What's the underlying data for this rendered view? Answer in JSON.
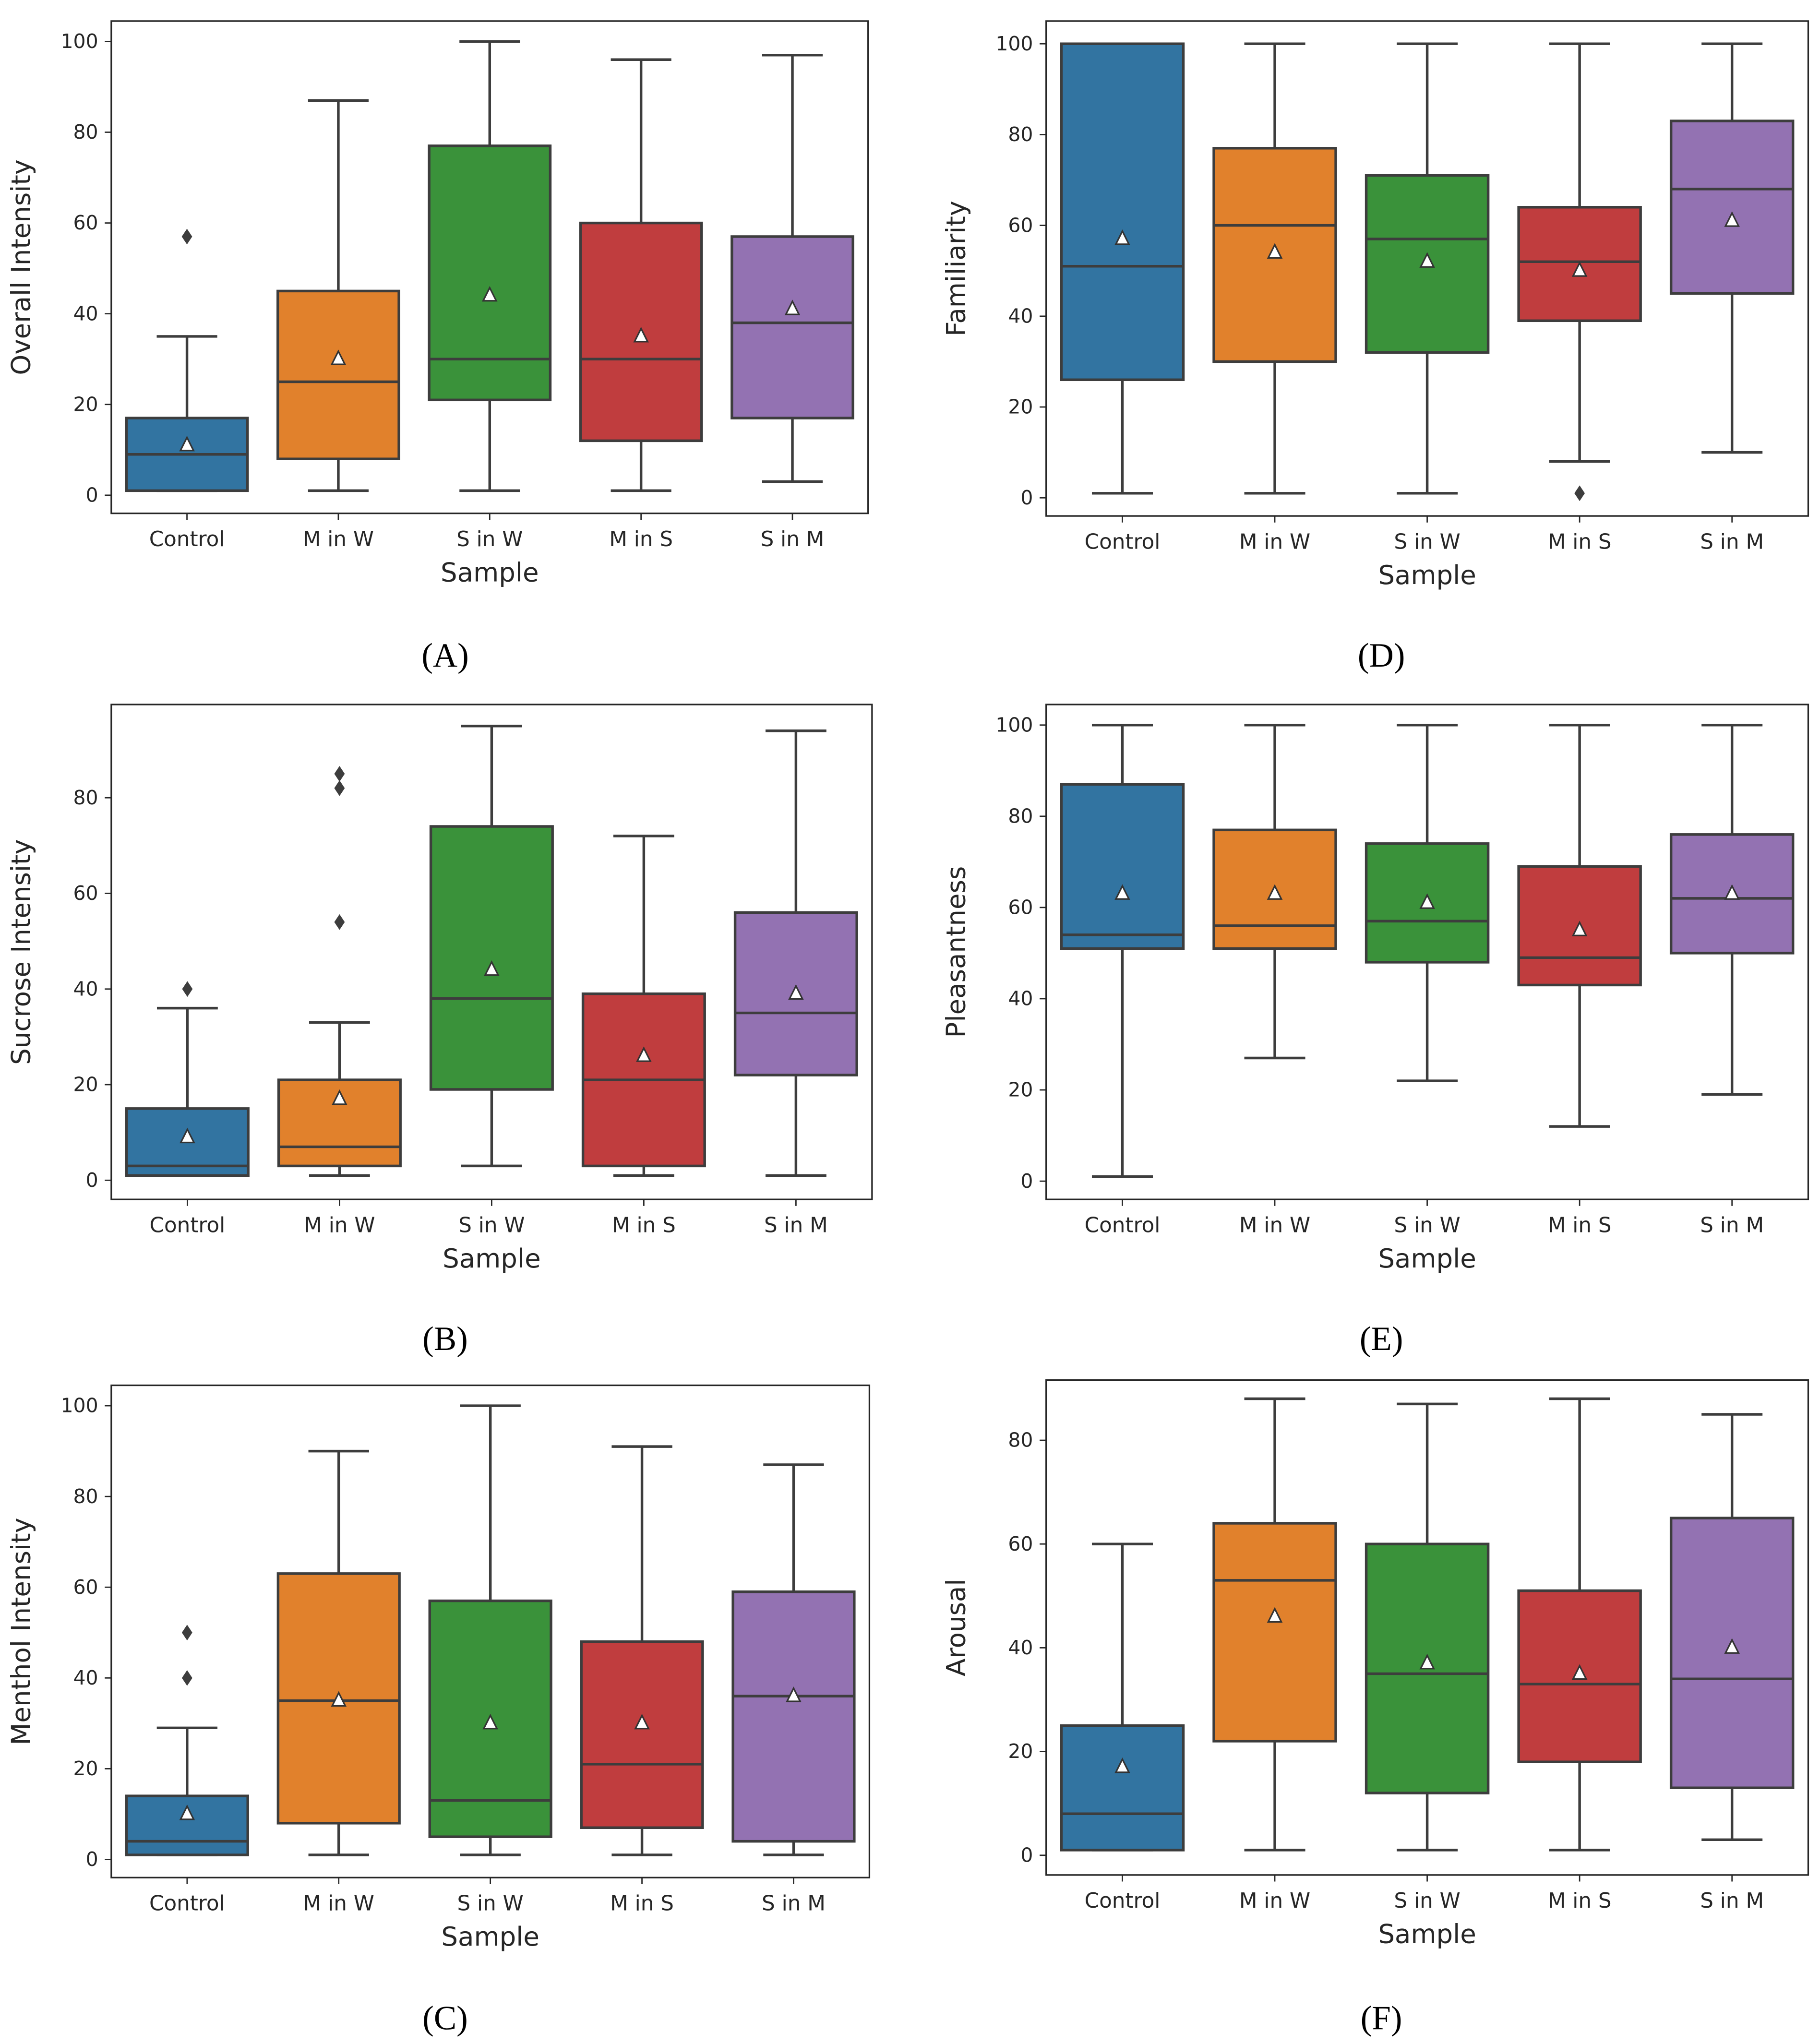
{
  "chart_data": [
    {
      "panel": "A",
      "type": "box",
      "ylabel": "Overall Intensity",
      "xlabel": "Sample",
      "ylim": [
        -4,
        104.5
      ],
      "yticks": [
        0,
        20,
        40,
        60,
        80,
        100
      ],
      "categories": [
        "Control",
        "M in W",
        "S in W",
        "M in S",
        "S in M"
      ],
      "boxes": [
        {
          "whislo": 1,
          "q1": 1,
          "med": 9,
          "q3": 17,
          "whishi": 35,
          "mean": 11,
          "fliers": [
            57
          ]
        },
        {
          "whislo": 1,
          "q1": 8,
          "med": 25,
          "q3": 45,
          "whishi": 87,
          "mean": 30,
          "fliers": []
        },
        {
          "whislo": 1,
          "q1": 21,
          "med": 30,
          "q3": 77,
          "whishi": 100,
          "mean": 44,
          "fliers": []
        },
        {
          "whislo": 1,
          "q1": 12,
          "med": 30,
          "q3": 60,
          "whishi": 96,
          "mean": 35,
          "fliers": []
        },
        {
          "whislo": 3,
          "q1": 17,
          "med": 38,
          "q3": 57,
          "whishi": 97,
          "mean": 41,
          "fliers": []
        }
      ]
    },
    {
      "panel": "D",
      "type": "box",
      "ylabel": "Familiarity",
      "xlabel": "Sample",
      "ylim": [
        -4,
        105
      ],
      "yticks": [
        0,
        20,
        40,
        60,
        80,
        100
      ],
      "categories": [
        "Control",
        "M in W",
        "S in W",
        "M in S",
        "S in M"
      ],
      "boxes": [
        {
          "whislo": 1,
          "q1": 26,
          "med": 51,
          "q3": 100,
          "whishi": 100,
          "mean": 57,
          "fliers": []
        },
        {
          "whislo": 1,
          "q1": 30,
          "med": 60,
          "q3": 77,
          "whishi": 100,
          "mean": 54,
          "fliers": []
        },
        {
          "whislo": 1,
          "q1": 32,
          "med": 57,
          "q3": 71,
          "whishi": 100,
          "mean": 52,
          "fliers": []
        },
        {
          "whislo": 8,
          "q1": 39,
          "med": 52,
          "q3": 64,
          "whishi": 100,
          "mean": 50,
          "fliers": [
            1
          ]
        },
        {
          "whislo": 10,
          "q1": 45,
          "med": 68,
          "q3": 83,
          "whishi": 100,
          "mean": 61,
          "fliers": []
        }
      ]
    },
    {
      "panel": "B",
      "type": "box",
      "ylabel": "Sucrose Intensity",
      "xlabel": "Sample",
      "ylim": [
        -4,
        99.5
      ],
      "yticks": [
        0,
        20,
        40,
        60,
        80
      ],
      "categories": [
        "Control",
        "M in W",
        "S in W",
        "M in S",
        "S in M"
      ],
      "boxes": [
        {
          "whislo": 1,
          "q1": 1,
          "med": 3,
          "q3": 15,
          "whishi": 36,
          "mean": 9,
          "fliers": [
            40
          ]
        },
        {
          "whislo": 1,
          "q1": 3,
          "med": 7,
          "q3": 21,
          "whishi": 33,
          "mean": 17,
          "fliers": [
            54,
            82,
            85
          ]
        },
        {
          "whislo": 3,
          "q1": 19,
          "med": 38,
          "q3": 74,
          "whishi": 95,
          "mean": 44,
          "fliers": []
        },
        {
          "whislo": 1,
          "q1": 3,
          "med": 21,
          "q3": 39,
          "whishi": 72,
          "mean": 26,
          "fliers": []
        },
        {
          "whislo": 1,
          "q1": 22,
          "med": 35,
          "q3": 56,
          "whishi": 94,
          "mean": 39,
          "fliers": []
        }
      ]
    },
    {
      "panel": "E",
      "type": "box",
      "ylabel": "Pleasantness",
      "xlabel": "Sample",
      "ylim": [
        -4,
        104.5
      ],
      "yticks": [
        0,
        20,
        40,
        60,
        80,
        100
      ],
      "categories": [
        "Control",
        "M in W",
        "S in W",
        "M in S",
        "S in M"
      ],
      "boxes": [
        {
          "whislo": 1,
          "q1": 51,
          "med": 54,
          "q3": 87,
          "whishi": 100,
          "mean": 63,
          "fliers": []
        },
        {
          "whislo": 27,
          "q1": 51,
          "med": 56,
          "q3": 77,
          "whishi": 100,
          "mean": 63,
          "fliers": []
        },
        {
          "whislo": 22,
          "q1": 48,
          "med": 57,
          "q3": 74,
          "whishi": 100,
          "mean": 61,
          "fliers": []
        },
        {
          "whislo": 12,
          "q1": 43,
          "med": 49,
          "q3": 69,
          "whishi": 100,
          "mean": 55,
          "fliers": []
        },
        {
          "whislo": 19,
          "q1": 50,
          "med": 62,
          "q3": 76,
          "whishi": 100,
          "mean": 63,
          "fliers": []
        }
      ]
    },
    {
      "panel": "C",
      "type": "box",
      "ylabel": "Menthol Intensity",
      "xlabel": "Sample",
      "ylim": [
        -4,
        104.5
      ],
      "yticks": [
        0,
        20,
        40,
        60,
        80,
        100
      ],
      "categories": [
        "Control",
        "M in W",
        "S in W",
        "M in S",
        "S in M"
      ],
      "boxes": [
        {
          "whislo": 1,
          "q1": 1,
          "med": 4,
          "q3": 14,
          "whishi": 29,
          "mean": 10,
          "fliers": [
            40,
            50
          ]
        },
        {
          "whislo": 1,
          "q1": 8,
          "med": 35,
          "q3": 63,
          "whishi": 90,
          "mean": 35,
          "fliers": []
        },
        {
          "whislo": 1,
          "q1": 5,
          "med": 13,
          "q3": 57,
          "whishi": 100,
          "mean": 30,
          "fliers": []
        },
        {
          "whislo": 1,
          "q1": 7,
          "med": 21,
          "q3": 48,
          "whishi": 91,
          "mean": 30,
          "fliers": []
        },
        {
          "whislo": 1,
          "q1": 4,
          "med": 36,
          "q3": 59,
          "whishi": 87,
          "mean": 36,
          "fliers": []
        }
      ]
    },
    {
      "panel": "F",
      "type": "box",
      "ylabel": "Arousal",
      "xlabel": "Sample",
      "ylim": [
        -3.8,
        91.6
      ],
      "yticks": [
        0,
        20,
        40,
        60,
        80
      ],
      "categories": [
        "Control",
        "M in W",
        "S in W",
        "M in S",
        "S in M"
      ],
      "boxes": [
        {
          "whislo": 1,
          "q1": 1,
          "med": 8,
          "q3": 25,
          "whishi": 60,
          "mean": 17,
          "fliers": []
        },
        {
          "whislo": 1,
          "q1": 22,
          "med": 53,
          "q3": 64,
          "whishi": 88,
          "mean": 46,
          "fliers": []
        },
        {
          "whislo": 1,
          "q1": 12,
          "med": 35,
          "q3": 60,
          "whishi": 87,
          "mean": 37,
          "fliers": []
        },
        {
          "whislo": 1,
          "q1": 18,
          "med": 33,
          "q3": 51,
          "whishi": 88,
          "mean": 35,
          "fliers": []
        },
        {
          "whislo": 3,
          "q1": 13,
          "med": 34,
          "q3": 65,
          "whishi": 85,
          "mean": 40,
          "fliers": []
        }
      ]
    }
  ],
  "captions": [
    "(A)",
    "(D)",
    "(B)",
    "(E)",
    "(C)",
    "(F)"
  ],
  "colors": [
    "#3274a1",
    "#e1812c",
    "#3a923a",
    "#c03d3e",
    "#9372b2"
  ]
}
